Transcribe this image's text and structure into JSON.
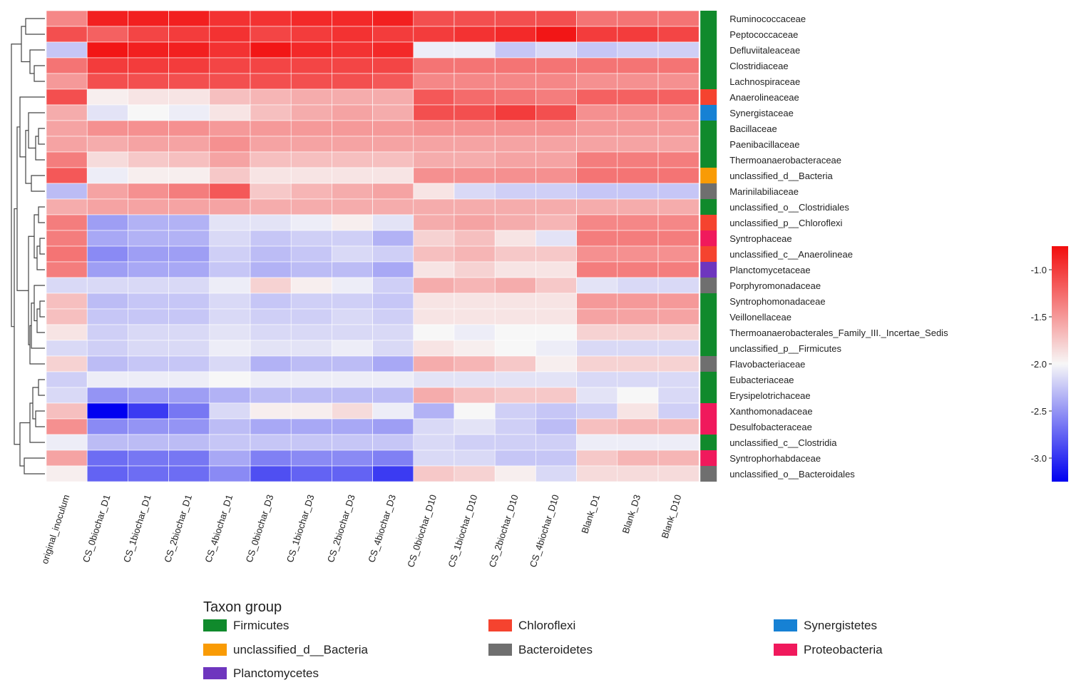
{
  "chart_data": {
    "type": "heatmap",
    "title": "",
    "columns": [
      "original_inoculum",
      "CS_0biochar_D1",
      "CS_1biochar_D1",
      "CS_2biochar_D1",
      "CS_4biochar_D1",
      "CS_0biochar_D3",
      "CS_1biochar_D3",
      "CS_2biochar_D3",
      "CS_4biochar_D3",
      "CS_0biochar_D10",
      "CS_1biochar_D10",
      "CS_2biochar_D10",
      "CS_4biochar_D10",
      "Blank_D1",
      "Blank_D3",
      "Blank_D10"
    ],
    "rows": [
      {
        "name": "Ruminococcaceae",
        "group": "Firmicutes",
        "values": [
          -1.4,
          -0.85,
          -0.85,
          -0.85,
          -0.95,
          -0.95,
          -0.9,
          -0.9,
          -0.85,
          -1.1,
          -1.1,
          -1.1,
          -1.1,
          -1.3,
          -1.3,
          -1.3
        ]
      },
      {
        "name": "Peptococcaceae",
        "group": "Firmicutes",
        "values": [
          -1.1,
          -1.2,
          -1.05,
          -1.0,
          -0.95,
          -1.05,
          -1.0,
          -0.95,
          -1.0,
          -1.0,
          -0.95,
          -0.9,
          -0.8,
          -1.0,
          -1.0,
          -1.05
        ]
      },
      {
        "name": "Defluviitaleaceae",
        "group": "Firmicutes",
        "values": [
          -2.25,
          -0.8,
          -0.85,
          -0.85,
          -0.95,
          -0.8,
          -0.9,
          -0.95,
          -0.9,
          -2.05,
          -2.05,
          -2.25,
          -2.15,
          -2.25,
          -2.2,
          -2.2
        ]
      },
      {
        "name": "Clostridiaceae",
        "group": "Firmicutes",
        "values": [
          -1.3,
          -1.0,
          -1.0,
          -1.0,
          -1.05,
          -1.05,
          -1.05,
          -1.05,
          -1.05,
          -1.3,
          -1.3,
          -1.3,
          -1.3,
          -1.3,
          -1.3,
          -1.3
        ]
      },
      {
        "name": "Lachnospiraceae",
        "group": "Firmicutes",
        "values": [
          -1.5,
          -1.1,
          -1.1,
          -1.1,
          -1.1,
          -1.1,
          -1.1,
          -1.1,
          -1.15,
          -1.4,
          -1.4,
          -1.4,
          -1.4,
          -1.45,
          -1.45,
          -1.45
        ]
      },
      {
        "name": "Anaerolineaceae",
        "group": "Chloroflexi",
        "values": [
          -1.1,
          -1.95,
          -1.9,
          -1.9,
          -1.7,
          -1.65,
          -1.6,
          -1.6,
          -1.6,
          -1.15,
          -1.25,
          -1.3,
          -1.35,
          -1.2,
          -1.2,
          -1.2
        ]
      },
      {
        "name": "Synergistaceae",
        "group": "Synergistetes",
        "values": [
          -1.6,
          -2.1,
          -2.0,
          -2.05,
          -1.9,
          -1.7,
          -1.6,
          -1.55,
          -1.6,
          -1.1,
          -1.1,
          -1.0,
          -1.1,
          -1.45,
          -1.45,
          -1.45
        ]
      },
      {
        "name": "Bacillaceae",
        "group": "Firmicutes",
        "values": [
          -1.55,
          -1.45,
          -1.45,
          -1.45,
          -1.5,
          -1.5,
          -1.5,
          -1.5,
          -1.5,
          -1.45,
          -1.45,
          -1.45,
          -1.45,
          -1.5,
          -1.5,
          -1.5
        ]
      },
      {
        "name": "Paenibacillaceae",
        "group": "Firmicutes",
        "values": [
          -1.55,
          -1.6,
          -1.55,
          -1.55,
          -1.45,
          -1.55,
          -1.55,
          -1.55,
          -1.55,
          -1.55,
          -1.55,
          -1.55,
          -1.55,
          -1.55,
          -1.55,
          -1.55
        ]
      },
      {
        "name": "Thermoanaerobacteraceae",
        "group": "Firmicutes",
        "values": [
          -1.35,
          -1.85,
          -1.75,
          -1.7,
          -1.55,
          -1.7,
          -1.7,
          -1.7,
          -1.7,
          -1.6,
          -1.6,
          -1.55,
          -1.55,
          -1.35,
          -1.35,
          -1.35
        ]
      },
      {
        "name": "unclassified_d__Bacteria",
        "group": "unclassified_d__Bacteria",
        "values": [
          -1.15,
          -2.05,
          -1.95,
          -1.95,
          -1.75,
          -1.9,
          -1.9,
          -1.9,
          -1.9,
          -1.45,
          -1.45,
          -1.45,
          -1.45,
          -1.3,
          -1.3,
          -1.3
        ]
      },
      {
        "name": "Marinilabiliaceae",
        "group": "Bacteroidetes",
        "values": [
          -2.3,
          -1.55,
          -1.45,
          -1.35,
          -1.15,
          -1.75,
          -1.65,
          -1.6,
          -1.55,
          -1.9,
          -2.15,
          -2.2,
          -2.2,
          -2.25,
          -2.25,
          -2.25
        ]
      },
      {
        "name": "unclassified_o__Clostridiales",
        "group": "Firmicutes",
        "values": [
          -1.6,
          -1.55,
          -1.55,
          -1.55,
          -1.55,
          -1.6,
          -1.6,
          -1.6,
          -1.6,
          -1.6,
          -1.6,
          -1.6,
          -1.6,
          -1.6,
          -1.6,
          -1.6
        ]
      },
      {
        "name": "unclassified_p__Chloroflexi",
        "group": "Chloroflexi",
        "values": [
          -1.35,
          -2.45,
          -2.35,
          -2.35,
          -2.1,
          -2.1,
          -2.05,
          -1.95,
          -2.1,
          -1.6,
          -1.55,
          -1.6,
          -1.65,
          -1.4,
          -1.4,
          -1.4
        ]
      },
      {
        "name": "Syntrophaceae",
        "group": "Proteobacteria",
        "values": [
          -1.35,
          -2.4,
          -2.35,
          -2.35,
          -2.15,
          -2.25,
          -2.2,
          -2.2,
          -2.35,
          -1.8,
          -1.7,
          -1.9,
          -2.1,
          -1.35,
          -1.35,
          -1.35
        ]
      },
      {
        "name": "unclassified_c__Anaerolineae",
        "group": "Chloroflexi",
        "values": [
          -1.3,
          -2.55,
          -2.45,
          -2.45,
          -2.2,
          -2.3,
          -2.25,
          -2.15,
          -2.2,
          -1.7,
          -1.65,
          -1.75,
          -1.75,
          -1.45,
          -1.45,
          -1.45
        ]
      },
      {
        "name": "Planctomycetaceae",
        "group": "Planctomycetes",
        "values": [
          -1.35,
          -2.45,
          -2.4,
          -2.4,
          -2.25,
          -2.35,
          -2.3,
          -2.3,
          -2.4,
          -1.9,
          -1.8,
          -1.9,
          -1.9,
          -1.35,
          -1.35,
          -1.35
        ]
      },
      {
        "name": "Porphyromonadaceae",
        "group": "Bacteroidetes",
        "values": [
          -2.15,
          -2.15,
          -2.15,
          -2.15,
          -2.05,
          -1.8,
          -1.95,
          -2.05,
          -2.2,
          -1.6,
          -1.65,
          -1.6,
          -1.75,
          -2.1,
          -2.15,
          -2.15
        ]
      },
      {
        "name": "Syntrophomonadaceae",
        "group": "Firmicutes",
        "values": [
          -1.7,
          -2.3,
          -2.25,
          -2.25,
          -2.15,
          -2.25,
          -2.2,
          -2.2,
          -2.25,
          -1.9,
          -1.9,
          -1.9,
          -1.9,
          -1.5,
          -1.5,
          -1.5
        ]
      },
      {
        "name": "Veillonellaceae",
        "group": "Firmicutes",
        "values": [
          -1.7,
          -2.25,
          -2.25,
          -2.25,
          -2.15,
          -2.2,
          -2.2,
          -2.15,
          -2.2,
          -1.9,
          -1.9,
          -1.9,
          -1.9,
          -1.55,
          -1.55,
          -1.55
        ]
      },
      {
        "name": "Thermoanaerobacterales_Family_III._Incertae_Sedis",
        "group": "Firmicutes",
        "values": [
          -1.9,
          -2.2,
          -2.15,
          -2.15,
          -2.1,
          -2.15,
          -2.15,
          -2.15,
          -2.15,
          -2.0,
          -2.05,
          -2.0,
          -2.0,
          -1.8,
          -1.8,
          -1.8
        ]
      },
      {
        "name": "unclassified_p__Firmicutes",
        "group": "Firmicutes",
        "values": [
          -2.15,
          -2.2,
          -2.15,
          -2.15,
          -2.05,
          -2.1,
          -2.1,
          -2.05,
          -2.15,
          -1.9,
          -1.95,
          -2.0,
          -2.05,
          -2.15,
          -2.15,
          -2.15
        ]
      },
      {
        "name": "Flavobacteriaceae",
        "group": "Bacteroidetes",
        "values": [
          -1.8,
          -2.3,
          -2.25,
          -2.25,
          -2.15,
          -2.35,
          -2.3,
          -2.3,
          -2.4,
          -1.6,
          -1.65,
          -1.75,
          -1.95,
          -1.8,
          -1.8,
          -1.8
        ]
      },
      {
        "name": "Eubacteriaceae",
        "group": "Firmicutes",
        "values": [
          -2.2,
          -2.05,
          -2.05,
          -2.05,
          -2.0,
          -2.05,
          -2.05,
          -2.05,
          -2.05,
          -2.1,
          -2.1,
          -2.1,
          -2.1,
          -2.15,
          -2.15,
          -2.15
        ]
      },
      {
        "name": "Erysipelotrichaceae",
        "group": "Firmicutes",
        "values": [
          -2.15,
          -2.5,
          -2.45,
          -2.45,
          -2.35,
          -2.3,
          -2.3,
          -2.3,
          -2.3,
          -1.6,
          -1.7,
          -1.75,
          -1.75,
          -2.1,
          -2.0,
          -2.15
        ]
      },
      {
        "name": "Xanthomonadaceae",
        "group": "Proteobacteria",
        "values": [
          -1.7,
          -3.25,
          -2.95,
          -2.65,
          -2.15,
          -1.95,
          -1.95,
          -1.85,
          -2.05,
          -2.35,
          -2.0,
          -2.2,
          -2.25,
          -2.2,
          -1.9,
          -2.2
        ]
      },
      {
        "name": "Desulfobacteraceae",
        "group": "Proteobacteria",
        "values": [
          -1.45,
          -2.55,
          -2.5,
          -2.5,
          -2.3,
          -2.4,
          -2.4,
          -2.4,
          -2.45,
          -2.15,
          -2.1,
          -2.2,
          -2.3,
          -1.7,
          -1.65,
          -1.65
        ]
      },
      {
        "name": "unclassified_c__Clostridia",
        "group": "Firmicutes",
        "values": [
          -2.05,
          -2.3,
          -2.3,
          -2.3,
          -2.25,
          -2.25,
          -2.25,
          -2.25,
          -2.25,
          -2.15,
          -2.2,
          -2.2,
          -2.2,
          -2.05,
          -2.05,
          -2.05
        ]
      },
      {
        "name": "Syntrophorhabdaceae",
        "group": "Proteobacteria",
        "values": [
          -1.55,
          -2.7,
          -2.65,
          -2.65,
          -2.4,
          -2.6,
          -2.55,
          -2.55,
          -2.6,
          -2.15,
          -2.15,
          -2.25,
          -2.25,
          -1.75,
          -1.65,
          -1.65
        ]
      },
      {
        "name": "unclassified_o__Bacteroidales",
        "group": "Bacteroidetes",
        "values": [
          -1.95,
          -2.75,
          -2.7,
          -2.7,
          -2.55,
          -2.85,
          -2.75,
          -2.75,
          -2.95,
          -1.75,
          -1.8,
          -1.95,
          -2.15,
          -1.85,
          -1.85,
          -1.85
        ]
      }
    ],
    "color_scale": {
      "min": -3.25,
      "max": -0.75,
      "low_color": "#0000f0",
      "mid_color": "#f7f7f7",
      "high_color": "#f20d0d",
      "ticks": [
        -1.0,
        -1.5,
        -2.0,
        -2.5,
        -3.0
      ],
      "tick_labels": [
        "-1.0",
        "-1.5",
        "-2.0",
        "-2.5",
        "-3.0"
      ]
    },
    "legend": {
      "title": "Taxon group",
      "items": [
        {
          "label": "Firmicutes",
          "color": "#108a2c"
        },
        {
          "label": "Chloroflexi",
          "color": "#f5432f"
        },
        {
          "label": "Synergistetes",
          "color": "#1681d4"
        },
        {
          "label": "unclassified_d__Bacteria",
          "color": "#f99b05"
        },
        {
          "label": "Bacteroidetes",
          "color": "#6f6f6f"
        },
        {
          "label": "Proteobacteria",
          "color": "#f0195c"
        },
        {
          "label": "Planctomycetes",
          "color": "#6e36be"
        }
      ]
    }
  }
}
